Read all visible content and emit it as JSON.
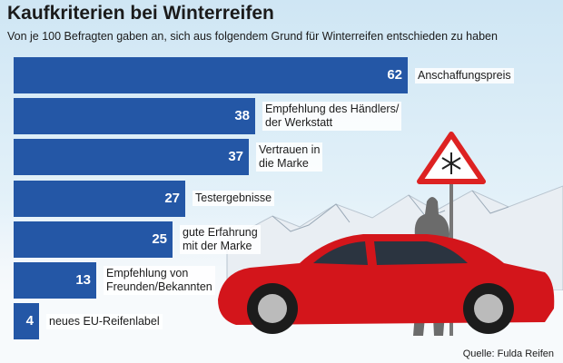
{
  "chart_data": {
    "type": "bar",
    "orientation": "horizontal",
    "title": "Kaufkriterien bei Winterreifen",
    "subtitle": "Von je 100 Befragten gaben an, sich aus folgendem Grund für Winterreifen entschieden zu haben",
    "source": "Quelle: Fulda Reifen",
    "color": "#2457a6",
    "categories": [
      "Anschaffungspreis",
      "Empfehlung des Händlers/\nder Werkstatt",
      "Vertrauen in\ndie Marke",
      "Testergebnisse",
      "gute Erfahrung\nmit der Marke",
      "Empfehlung von\nFreunden/Bekannten",
      "neues EU-Reifenlabel"
    ],
    "values": [
      62,
      38,
      37,
      27,
      25,
      13,
      4
    ]
  }
}
